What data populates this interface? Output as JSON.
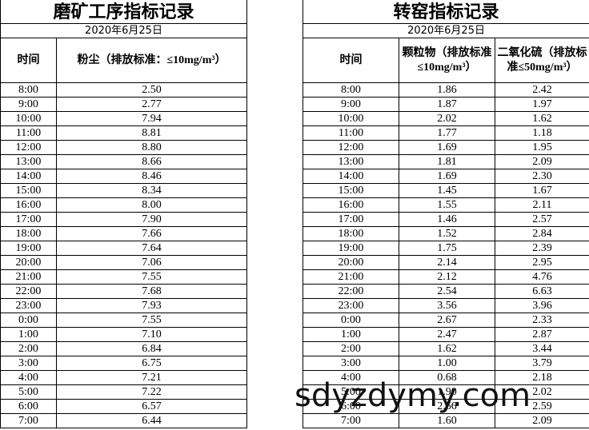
{
  "left": {
    "title": "磨矿工序指标记录",
    "date": "2020年6月25日",
    "headers": [
      "时间",
      "粉尘（排放标准：≤10mg/m³）"
    ],
    "rows": [
      [
        "8:00",
        "2.50"
      ],
      [
        "9:00",
        "2.77"
      ],
      [
        "10:00",
        "7.94"
      ],
      [
        "11:00",
        "8.81"
      ],
      [
        "12:00",
        "8.80"
      ],
      [
        "13:00",
        "8.66"
      ],
      [
        "14:00",
        "8.46"
      ],
      [
        "15:00",
        "8.34"
      ],
      [
        "16:00",
        "8.00"
      ],
      [
        "17:00",
        "7.90"
      ],
      [
        "18:00",
        "7.66"
      ],
      [
        "19:00",
        "7.64"
      ],
      [
        "20:00",
        "7.06"
      ],
      [
        "21:00",
        "7.55"
      ],
      [
        "22:00",
        "7.68"
      ],
      [
        "23:00",
        "7.93"
      ],
      [
        "0:00",
        "7.55"
      ],
      [
        "1:00",
        "7.10"
      ],
      [
        "2:00",
        "6.84"
      ],
      [
        "3:00",
        "6.75"
      ],
      [
        "4:00",
        "7.21"
      ],
      [
        "5:00",
        "7.22"
      ],
      [
        "6:00",
        "6.57"
      ],
      [
        "7:00",
        "6.44"
      ]
    ]
  },
  "right": {
    "title": "转窑指标记录",
    "date": "2020年6月25日",
    "headers": [
      "时间",
      "颗粒物（排放标准≤10mg/m³）",
      "二氧化硫（排放标准≤50mg/m³）"
    ],
    "rows": [
      [
        "8:00",
        "1.86",
        "2.42"
      ],
      [
        "9:00",
        "1.87",
        "1.97"
      ],
      [
        "10:00",
        "2.02",
        "1.62"
      ],
      [
        "11:00",
        "1.77",
        "1.18"
      ],
      [
        "12:00",
        "1.69",
        "1.95"
      ],
      [
        "13:00",
        "1.81",
        "2.09"
      ],
      [
        "14:00",
        "1.69",
        "2.30"
      ],
      [
        "15:00",
        "1.45",
        "1.67"
      ],
      [
        "16:00",
        "1.55",
        "2.11"
      ],
      [
        "17:00",
        "1.46",
        "2.57"
      ],
      [
        "18:00",
        "1.52",
        "2.84"
      ],
      [
        "19:00",
        "1.75",
        "2.39"
      ],
      [
        "20:00",
        "2.14",
        "2.95"
      ],
      [
        "21:00",
        "2.12",
        "4.76"
      ],
      [
        "22:00",
        "2.54",
        "6.63"
      ],
      [
        "23:00",
        "3.56",
        "3.96"
      ],
      [
        "0:00",
        "2.67",
        "2.33"
      ],
      [
        "1:00",
        "2.47",
        "2.87"
      ],
      [
        "2:00",
        "1.62",
        "3.44"
      ],
      [
        "3:00",
        "1.00",
        "3.79"
      ],
      [
        "4:00",
        "0.68",
        "2.18"
      ],
      [
        "5:00",
        "1.90",
        "2.02"
      ],
      [
        "6:00",
        "2.66",
        "2.59"
      ],
      [
        "7:00",
        "1.60",
        "2.09"
      ]
    ]
  },
  "watermark": "sdyzdymy.com"
}
